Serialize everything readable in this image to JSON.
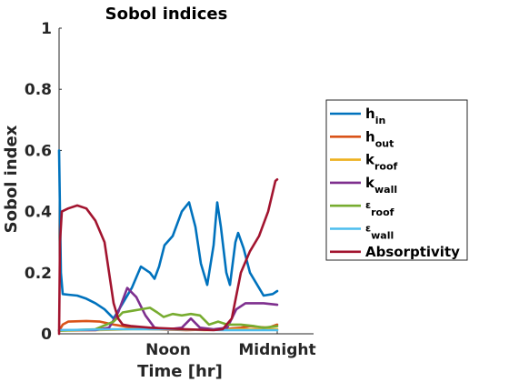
{
  "chart_data": {
    "type": "line",
    "title": "Sobol indices",
    "xlabel": "Time [hr]",
    "ylabel": "Sobol index",
    "xlim": [
      0,
      28
    ],
    "ylim": [
      0,
      1
    ],
    "x_ticks": [
      {
        "value": 12,
        "label": "Noon"
      },
      {
        "value": 24,
        "label": "Midnight"
      }
    ],
    "y_ticks": [
      {
        "value": 0,
        "label": "0"
      },
      {
        "value": 0.2,
        "label": "0.2"
      },
      {
        "value": 0.4,
        "label": "0.4"
      },
      {
        "value": 0.6,
        "label": "0.6"
      },
      {
        "value": 0.8,
        "label": "0.8"
      },
      {
        "value": 1,
        "label": "1"
      }
    ],
    "grid": false,
    "legend_position": "right",
    "series": [
      {
        "name": "h",
        "sub": "in",
        "color": "#0072BD",
        "points": [
          [
            0,
            0.6
          ],
          [
            0.2,
            0.2
          ],
          [
            0.4,
            0.13
          ],
          [
            1,
            0.128
          ],
          [
            2,
            0.125
          ],
          [
            3,
            0.115
          ],
          [
            4,
            0.1
          ],
          [
            5,
            0.08
          ],
          [
            6,
            0.05
          ],
          [
            7,
            0.1
          ],
          [
            8,
            0.15
          ],
          [
            9,
            0.22
          ],
          [
            10,
            0.2
          ],
          [
            10.5,
            0.18
          ],
          [
            11,
            0.22
          ],
          [
            11.6,
            0.29
          ],
          [
            12.5,
            0.32
          ],
          [
            13.5,
            0.4
          ],
          [
            14.3,
            0.43
          ],
          [
            15,
            0.35
          ],
          [
            15.6,
            0.23
          ],
          [
            16.3,
            0.16
          ],
          [
            17,
            0.29
          ],
          [
            17.4,
            0.43
          ],
          [
            17.8,
            0.35
          ],
          [
            18.4,
            0.2
          ],
          [
            18.8,
            0.16
          ],
          [
            19.4,
            0.3
          ],
          [
            19.7,
            0.33
          ],
          [
            20.3,
            0.28
          ],
          [
            21,
            0.2
          ],
          [
            22,
            0.15
          ],
          [
            22.5,
            0.125
          ],
          [
            23.5,
            0.13
          ],
          [
            24,
            0.14
          ]
        ]
      },
      {
        "name": "h",
        "sub": "out",
        "color": "#D95319",
        "points": [
          [
            0,
            0.01
          ],
          [
            0.4,
            0.03
          ],
          [
            1,
            0.04
          ],
          [
            3,
            0.042
          ],
          [
            4.5,
            0.04
          ],
          [
            6,
            0.03
          ],
          [
            8,
            0.02
          ],
          [
            10,
            0.015
          ],
          [
            14,
            0.012
          ],
          [
            18,
            0.015
          ],
          [
            20,
            0.02
          ],
          [
            21,
            0.025
          ],
          [
            22,
            0.022
          ],
          [
            23,
            0.02
          ],
          [
            24,
            0.03
          ]
        ]
      },
      {
        "name": "k",
        "sub": "roof",
        "color": "#EDB120",
        "points": [
          [
            0,
            0.01
          ],
          [
            4,
            0.012
          ],
          [
            8,
            0.015
          ],
          [
            12,
            0.015
          ],
          [
            16,
            0.012
          ],
          [
            20,
            0.015
          ],
          [
            24,
            0.015
          ]
        ]
      },
      {
        "name": "k",
        "sub": "wall",
        "color": "#7E2F8E",
        "points": [
          [
            0,
            0.012
          ],
          [
            4,
            0.012
          ],
          [
            5.5,
            0.02
          ],
          [
            6.5,
            0.07
          ],
          [
            7.5,
            0.15
          ],
          [
            8.5,
            0.12
          ],
          [
            9.5,
            0.06
          ],
          [
            10.5,
            0.02
          ],
          [
            12,
            0.015
          ],
          [
            13.5,
            0.02
          ],
          [
            14.5,
            0.05
          ],
          [
            15.5,
            0.02
          ],
          [
            17,
            0.015
          ],
          [
            18.5,
            0.02
          ],
          [
            19.5,
            0.08
          ],
          [
            20.5,
            0.1
          ],
          [
            22.5,
            0.1
          ],
          [
            24,
            0.095
          ]
        ]
      },
      {
        "name": "ε",
        "sub": "roof",
        "color": "#77AC30",
        "points": [
          [
            0,
            0.01
          ],
          [
            4,
            0.015
          ],
          [
            6,
            0.04
          ],
          [
            7,
            0.07
          ],
          [
            8,
            0.075
          ],
          [
            9,
            0.08
          ],
          [
            10,
            0.085
          ],
          [
            10.8,
            0.07
          ],
          [
            11.5,
            0.055
          ],
          [
            12.5,
            0.065
          ],
          [
            13.5,
            0.06
          ],
          [
            14.5,
            0.065
          ],
          [
            15.5,
            0.06
          ],
          [
            16.5,
            0.03
          ],
          [
            17.5,
            0.04
          ],
          [
            18.5,
            0.03
          ],
          [
            20,
            0.03
          ],
          [
            21.5,
            0.025
          ],
          [
            22.5,
            0.02
          ],
          [
            24,
            0.025
          ]
        ]
      },
      {
        "name": "ε",
        "sub": "wall",
        "color": "#4DBEEE",
        "points": [
          [
            0,
            0.012
          ],
          [
            6,
            0.015
          ],
          [
            12,
            0.015
          ],
          [
            18,
            0.012
          ],
          [
            24,
            0.012
          ]
        ]
      },
      {
        "name": "Absorptivity",
        "sub": "",
        "color": "#A2142F",
        "points": [
          [
            0,
            0.0
          ],
          [
            0.1,
            0.3
          ],
          [
            0.3,
            0.4
          ],
          [
            1,
            0.41
          ],
          [
            2,
            0.42
          ],
          [
            3,
            0.41
          ],
          [
            4,
            0.37
          ],
          [
            5,
            0.3
          ],
          [
            5.5,
            0.2
          ],
          [
            6,
            0.1
          ],
          [
            6.5,
            0.05
          ],
          [
            7,
            0.03
          ],
          [
            8,
            0.025
          ],
          [
            10,
            0.02
          ],
          [
            14,
            0.015
          ],
          [
            17,
            0.012
          ],
          [
            18,
            0.015
          ],
          [
            19,
            0.05
          ],
          [
            20,
            0.2
          ],
          [
            21,
            0.27
          ],
          [
            22,
            0.32
          ],
          [
            23,
            0.4
          ],
          [
            23.8,
            0.5
          ],
          [
            24,
            0.505
          ]
        ]
      }
    ]
  }
}
